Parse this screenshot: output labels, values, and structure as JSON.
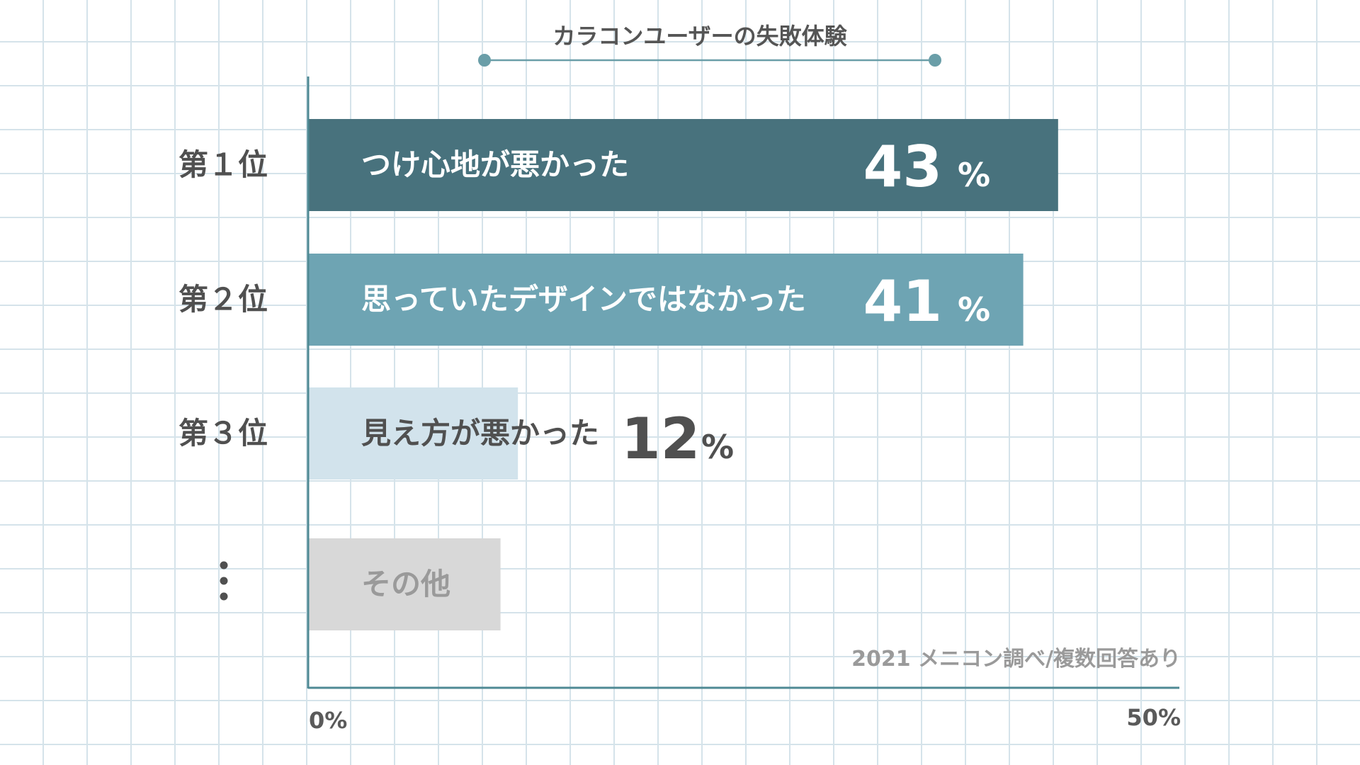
{
  "chart_data": {
    "type": "bar",
    "orientation": "horizontal",
    "title": "カラコンユーザーの失敗体験",
    "ranks": [
      "第１位",
      "第２位",
      "第３位",
      "⋮"
    ],
    "categories": [
      "つけ心地が悪かった",
      "思っていたデザインではなかった",
      "見え方が悪かった",
      "その他"
    ],
    "values": [
      43,
      41,
      12,
      11
    ],
    "value_labels": [
      "43",
      "41",
      "12",
      ""
    ],
    "unit": "%",
    "xlim": [
      0,
      50
    ],
    "tick_labels": [
      "0%",
      "50%"
    ],
    "source": "2021  メニコン調べ/複数回答あり",
    "grid": true,
    "legend": "none"
  },
  "colors": {
    "bar_1": "#48727d",
    "bar_2": "#6ea4b3",
    "bar_3": "#d2e3ec",
    "bar_other": "#d8d8d8",
    "axis": "#4f8a94",
    "grid": "#d5e3ea",
    "title_marker": "#6a9ea8",
    "text_dark": "#505050",
    "text_on_dark": "#ffffff",
    "text_other": "#9a9a9a"
  }
}
